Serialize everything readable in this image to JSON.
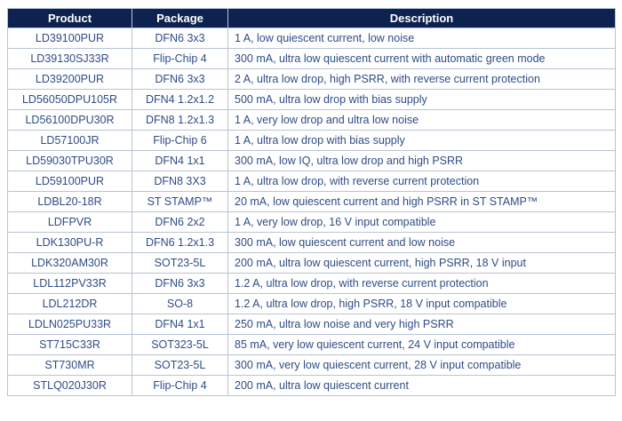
{
  "colors": {
    "header_bg": "#0e2250",
    "header_text": "#ffffff",
    "body_text": "#2e4d87",
    "border": "#b9c4d4",
    "row_bg": "#ffffff"
  },
  "table": {
    "columns": [
      {
        "label": "Product"
      },
      {
        "label": "Package"
      },
      {
        "label": "Description"
      }
    ],
    "rows": [
      {
        "product": "LD39100PUR",
        "package": "DFN6 3x3",
        "description": "1 A, low quiescent current, low noise"
      },
      {
        "product": "LD39130SJ33R",
        "package": "Flip-Chip 4",
        "description": "300 mA, ultra low quiescent current with automatic green mode"
      },
      {
        "product": "LD39200PUR",
        "package": "DFN6 3x3",
        "description": "2 A, ultra low drop, high PSRR, with reverse current protection"
      },
      {
        "product": "LD56050DPU105R",
        "package": "DFN4 1.2x1.2",
        "description": "500 mA, ultra low drop with bias supply"
      },
      {
        "product": "LD56100DPU30R",
        "package": "DFN8 1.2x1.3",
        "description": "1 A, very low drop and ultra low noise"
      },
      {
        "product": "LD57100JR",
        "package": "Flip-Chip 6",
        "description": "1 A, ultra low drop with bias supply"
      },
      {
        "product": "LD59030TPU30R",
        "package": "DFN4 1x1",
        "description": "300 mA, low IQ, ultra low drop and high PSRR"
      },
      {
        "product": "LD59100PUR",
        "package": "DFN8 3X3",
        "description": "1 A, ultra low drop, with reverse current protection"
      },
      {
        "product": "LDBL20-18R",
        "package": "ST STAMP™",
        "description": "20 mA, low quiescent current and high PSRR in ST STAMP™"
      },
      {
        "product": "LDFPVR",
        "package": "DFN6 2x2",
        "description": "1 A, very low drop, 16 V input compatible"
      },
      {
        "product": "LDK130PU-R",
        "package": "DFN6 1.2x1.3",
        "description": "300 mA, low quiescent current and low noise"
      },
      {
        "product": "LDK320AM30R",
        "package": "SOT23-5L",
        "description": "200 mA, ultra low quiescent current, high PSRR, 18 V input"
      },
      {
        "product": "LDL112PV33R",
        "package": "DFN6 3x3",
        "description": "1.2 A, ultra low drop, with reverse current protection"
      },
      {
        "product": "LDL212DR",
        "package": "SO-8",
        "description": "1.2 A, ultra low drop, high PSRR, 18 V input compatible"
      },
      {
        "product": "LDLN025PU33R",
        "package": "DFN4 1x1",
        "description": "250 mA, ultra low noise and very high PSRR"
      },
      {
        "product": "ST715C33R",
        "package": "SOT323-5L",
        "description": "85 mA, very low quiescent current, 24 V input compatible"
      },
      {
        "product": "ST730MR",
        "package": "SOT23-5L",
        "description": "300 mA, very low quiescent current, 28 V input compatible"
      },
      {
        "product": "STLQ020J30R",
        "package": "Flip-Chip 4",
        "description": "200 mA, ultra low quiescent current"
      }
    ]
  }
}
